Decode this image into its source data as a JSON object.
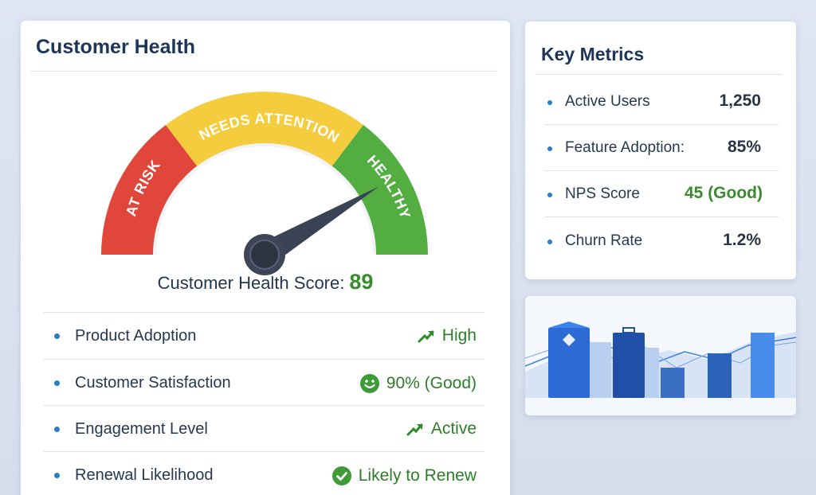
{
  "health": {
    "title": "Customer Health",
    "gauge": {
      "zones": [
        "AT RISK",
        "NEEDS ATTENTION",
        "HEALTHY"
      ],
      "colors": {
        "at_risk": "#e0473a",
        "needs_attention": "#f5cc3e",
        "healthy": "#53ad41",
        "needle": "#3a4354"
      },
      "needle_value": 89
    },
    "score_label": "Customer Health Score:",
    "score_value": "89",
    "rows": [
      {
        "label": "Product Adoption",
        "value": "High",
        "icon": "trend-up-icon"
      },
      {
        "label": "Customer Satisfaction",
        "value": "90% (Good)",
        "icon": "smiley-icon"
      },
      {
        "label": "Engagement Level",
        "value": "Active",
        "icon": "trend-up-icon"
      },
      {
        "label": "Renewal Likelihood",
        "value": "Likely to Renew",
        "icon": "check-circle-icon"
      }
    ]
  },
  "metrics": {
    "title": "Key Metrics",
    "rows": [
      {
        "label": "Active Users",
        "value": "1,250"
      },
      {
        "label": "Feature Adoption:",
        "value": "85%"
      },
      {
        "label": "NPS Score",
        "value": "45 (Good)"
      },
      {
        "label": "Churn Rate",
        "value": "1.2%"
      }
    ]
  },
  "colors": {
    "accent": "#1d3557",
    "positive": "#3a8a2e",
    "bullet": "#2a7fc0",
    "chart_blue": "#2f6fd0"
  }
}
